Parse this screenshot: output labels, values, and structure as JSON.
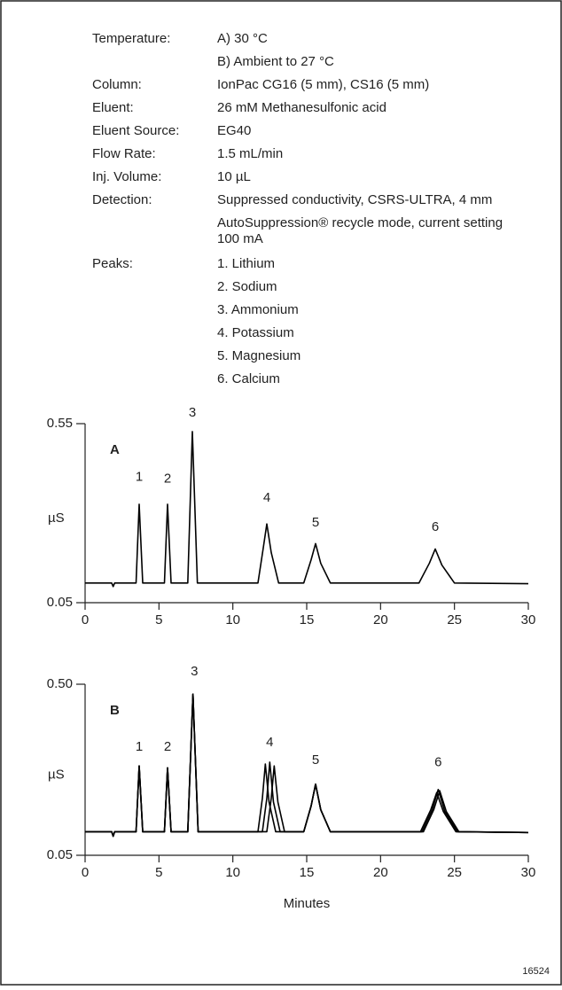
{
  "conditions": [
    {
      "label": "Temperature:",
      "lines": [
        "A) 30 °C",
        "B) Ambient to 27 °C"
      ]
    },
    {
      "label": "Column:",
      "lines": [
        "IonPac CG16 (5 mm), CS16 (5 mm)"
      ]
    },
    {
      "label": "Eluent:",
      "lines": [
        "26 mM Methanesulfonic acid"
      ]
    },
    {
      "label": "Eluent Source:",
      "lines": [
        "EG40"
      ]
    },
    {
      "label": "Flow Rate:",
      "lines": [
        "1.5 mL/min"
      ]
    },
    {
      "label": "Inj. Volume:",
      "lines": [
        "10 µL"
      ]
    },
    {
      "label": "Detection:",
      "lines": [
        "Suppressed conductivity, CSRS-ULTRA, 4 mm",
        "AutoSuppression® recycle mode, current setting",
        "100 mA"
      ]
    },
    {
      "label": "Peaks:",
      "lines": [
        "1. Lithium",
        "2. Sodium",
        "3. Ammonium",
        "4. Potassium",
        "5. Magnesium",
        "6. Calcium"
      ]
    }
  ],
  "figure_id": "16524",
  "chart_data": [
    {
      "type": "line",
      "panel": "A",
      "y_label": "µS",
      "xlim": [
        0,
        30
      ],
      "xticks": [
        0,
        5,
        10,
        15,
        20,
        25,
        30
      ],
      "ylim": [
        0.05,
        0.55
      ],
      "yticks": [
        0.05,
        0.55
      ],
      "series": [
        {
          "color": "#000000",
          "x": [
            0,
            1.8,
            1.9,
            2.0,
            3.45,
            3.66,
            3.9,
            5.37,
            5.58,
            5.82,
            6.95,
            7.26,
            7.6,
            11.7,
            12.05,
            12.3,
            12.6,
            13.1,
            14.8,
            15.3,
            15.6,
            15.95,
            16.6,
            22.6,
            23.3,
            23.7,
            24.15,
            25.0,
            30
          ],
          "values": [
            0.105,
            0.105,
            0.095,
            0.105,
            0.105,
            0.325,
            0.105,
            0.105,
            0.325,
            0.105,
            0.105,
            0.528,
            0.105,
            0.105,
            0.2,
            0.27,
            0.19,
            0.105,
            0.105,
            0.17,
            0.215,
            0.16,
            0.105,
            0.105,
            0.16,
            0.2,
            0.155,
            0.105,
            0.103
          ]
        }
      ],
      "annotations": [
        {
          "text": "1",
          "x": 3.66,
          "y": 0.4
        },
        {
          "text": "2",
          "x": 5.58,
          "y": 0.395
        },
        {
          "text": "3",
          "x": 7.26,
          "y": 0.58
        },
        {
          "text": "4",
          "x": 12.3,
          "y": 0.3425
        },
        {
          "text": "5",
          "x": 15.6,
          "y": 0.2725
        },
        {
          "text": "6",
          "x": 23.7,
          "y": 0.26
        }
      ]
    },
    {
      "type": "line",
      "panel": "B",
      "y_label": "µS",
      "x_label": "Minutes",
      "xlim": [
        0,
        30
      ],
      "xticks": [
        0,
        5,
        10,
        15,
        20,
        25,
        30
      ],
      "ylim": [
        0.05,
        0.5
      ],
      "yticks": [
        0.05,
        {
          "value": 0.5,
          "label": "0.50"
        }
      ],
      "series": [
        {
          "color": "#000000",
          "x": [
            0,
            1.8,
            1.9,
            2.0,
            3.45,
            3.66,
            3.9,
            5.37,
            5.58,
            5.82,
            6.95,
            7.3,
            7.65,
            11.7,
            12.0,
            12.2,
            12.45,
            12.9,
            14.8,
            15.3,
            15.6,
            15.95,
            16.6,
            22.7,
            23.4,
            23.8,
            24.25,
            25.1,
            30
          ],
          "values": [
            0.112,
            0.112,
            0.1,
            0.112,
            0.112,
            0.285,
            0.112,
            0.112,
            0.28,
            0.112,
            0.112,
            0.474,
            0.112,
            0.112,
            0.2,
            0.29,
            0.19,
            0.112,
            0.112,
            0.18,
            0.237,
            0.17,
            0.112,
            0.112,
            0.17,
            0.215,
            0.165,
            0.112,
            0.11
          ]
        },
        {
          "color": "#000000",
          "x": [
            0,
            1.8,
            1.9,
            2.0,
            3.45,
            3.66,
            3.9,
            5.37,
            5.58,
            5.82,
            6.95,
            7.3,
            7.65,
            12.0,
            12.3,
            12.5,
            12.75,
            13.2,
            14.8,
            15.3,
            15.6,
            15.95,
            16.6,
            22.8,
            23.5,
            23.9,
            24.35,
            25.2,
            30
          ],
          "values": [
            0.112,
            0.112,
            0.1,
            0.112,
            0.112,
            0.285,
            0.112,
            0.112,
            0.28,
            0.112,
            0.112,
            0.474,
            0.112,
            0.112,
            0.2,
            0.295,
            0.19,
            0.112,
            0.112,
            0.18,
            0.237,
            0.17,
            0.112,
            0.112,
            0.17,
            0.223,
            0.165,
            0.112,
            0.11
          ]
        },
        {
          "color": "#000000",
          "x": [
            0,
            1.8,
            1.9,
            2.0,
            3.45,
            3.66,
            3.9,
            5.37,
            5.58,
            5.82,
            6.95,
            7.3,
            7.65,
            12.3,
            12.6,
            12.8,
            13.05,
            13.5,
            14.8,
            15.3,
            15.6,
            15.95,
            16.6,
            22.9,
            23.6,
            24.0,
            24.45,
            25.3,
            30
          ],
          "values": [
            0.112,
            0.112,
            0.1,
            0.112,
            0.112,
            0.285,
            0.112,
            0.112,
            0.28,
            0.112,
            0.112,
            0.474,
            0.112,
            0.112,
            0.2,
            0.285,
            0.19,
            0.112,
            0.112,
            0.18,
            0.237,
            0.17,
            0.112,
            0.112,
            0.17,
            0.22,
            0.165,
            0.112,
            0.11
          ]
        }
      ],
      "annotations": [
        {
          "text": "1",
          "x": 3.66,
          "y": 0.334
        },
        {
          "text": "2",
          "x": 5.58,
          "y": 0.334
        },
        {
          "text": "3",
          "x": 7.4,
          "y": 0.533
        },
        {
          "text": "4",
          "x": 12.5,
          "y": 0.346
        },
        {
          "text": "5",
          "x": 15.6,
          "y": 0.299
        },
        {
          "text": "6",
          "x": 23.9,
          "y": 0.294
        }
      ]
    }
  ]
}
